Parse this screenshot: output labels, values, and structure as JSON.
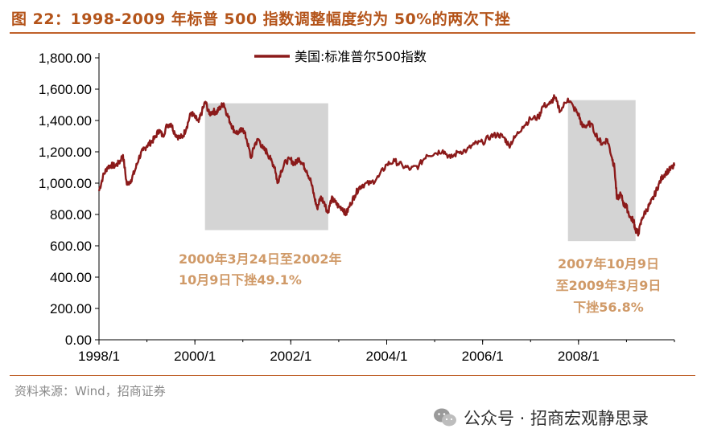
{
  "title": "图 22：1998-2009 年标普 500 指数调整幅度约为 50%的两次下挫",
  "source": "资料来源：Wind，招商证券",
  "watermark": "公众号 · 招商宏观静思录",
  "chart_data": {
    "type": "line",
    "ylim": [
      0,
      1800
    ],
    "yticks": [
      "1,800.00",
      "1,600.00",
      "1,400.00",
      "1,200.00",
      "1,000.00",
      "800.00",
      "600.00",
      "400.00",
      "200.00",
      "0.00"
    ],
    "xticks": [
      "1998/1",
      "2000/1",
      "2002/1",
      "2004/1",
      "2006/1",
      "2008/1"
    ],
    "xlim": [
      1998.0,
      2010.0
    ],
    "legend": "美国:标准普尔500指数",
    "legend_position": "top-center",
    "series": [
      {
        "name": "美国:标准普尔500指数",
        "color": "#8b1a1a",
        "x": [
          1998.0,
          1998.08,
          1998.17,
          1998.25,
          1998.33,
          1998.42,
          1998.5,
          1998.58,
          1998.67,
          1998.75,
          1998.83,
          1998.92,
          1999.0,
          1999.08,
          1999.17,
          1999.25,
          1999.33,
          1999.42,
          1999.5,
          1999.58,
          1999.67,
          1999.75,
          1999.83,
          1999.92,
          2000.0,
          2000.08,
          2000.15,
          2000.22,
          2000.3,
          2000.38,
          2000.45,
          2000.52,
          2000.6,
          2000.67,
          2000.75,
          2000.83,
          2000.92,
          2001.0,
          2001.08,
          2001.17,
          2001.25,
          2001.33,
          2001.42,
          2001.5,
          2001.58,
          2001.67,
          2001.72,
          2001.8,
          2001.9,
          2002.0,
          2002.08,
          2002.17,
          2002.25,
          2002.33,
          2002.42,
          2002.5,
          2002.55,
          2002.62,
          2002.7,
          2002.77,
          2002.85,
          2002.92,
          2003.0,
          2003.08,
          2003.15,
          2003.25,
          2003.33,
          2003.42,
          2003.5,
          2003.67,
          2003.83,
          2004.0,
          2004.17,
          2004.33,
          2004.5,
          2004.67,
          2004.83,
          2005.0,
          2005.17,
          2005.33,
          2005.5,
          2005.67,
          2005.83,
          2006.0,
          2006.17,
          2006.33,
          2006.45,
          2006.55,
          2006.67,
          2006.83,
          2007.0,
          2007.17,
          2007.25,
          2007.42,
          2007.5,
          2007.62,
          2007.78,
          2007.9,
          2008.0,
          2008.08,
          2008.17,
          2008.25,
          2008.42,
          2008.5,
          2008.6,
          2008.7,
          2008.75,
          2008.8,
          2008.88,
          2008.95,
          2009.0,
          2009.08,
          2009.15,
          2009.19,
          2009.25,
          2009.33,
          2009.42,
          2009.5,
          2009.58,
          2009.67,
          2009.75,
          2009.83,
          2009.92,
          2010.0
        ],
        "values": [
          950,
          1040,
          1100,
          1115,
          1110,
          1130,
          1180,
          990,
          1020,
          1080,
          1160,
          1210,
          1240,
          1260,
          1290,
          1340,
          1300,
          1370,
          1380,
          1320,
          1290,
          1300,
          1360,
          1450,
          1420,
          1390,
          1460,
          1520,
          1440,
          1460,
          1450,
          1480,
          1510,
          1440,
          1380,
          1330,
          1320,
          1350,
          1280,
          1160,
          1250,
          1280,
          1220,
          1200,
          1150,
          1100,
          1000,
          1080,
          1140,
          1150,
          1120,
          1160,
          1120,
          1080,
          1010,
          900,
          840,
          910,
          880,
          810,
          900,
          880,
          850,
          840,
          800,
          870,
          920,
          970,
          990,
          1000,
          1040,
          1120,
          1140,
          1110,
          1090,
          1110,
          1180,
          1190,
          1210,
          1160,
          1200,
          1210,
          1250,
          1260,
          1300,
          1310,
          1290,
          1240,
          1290,
          1360,
          1410,
          1420,
          1490,
          1510,
          1550,
          1460,
          1540,
          1480,
          1440,
          1360,
          1370,
          1380,
          1280,
          1250,
          1280,
          1160,
          1100,
          900,
          930,
          860,
          850,
          780,
          760,
          700,
          680,
          780,
          830,
          870,
          920,
          990,
          1040,
          1070,
          1090,
          1110
        ]
      }
    ],
    "annotations": [
      {
        "lines": [
          "2000年3月24日至2002年",
          "10月9日下挫49.1%"
        ],
        "shade": {
          "x": [
            2000.21,
            2002.78
          ],
          "y": [
            700,
            1510
          ]
        }
      },
      {
        "lines": [
          "2007年10月9日",
          "至2009年3月9日",
          "下挫56.8%"
        ],
        "shade": {
          "x": [
            2007.78,
            2009.19
          ],
          "y": [
            630,
            1530
          ]
        }
      }
    ]
  }
}
